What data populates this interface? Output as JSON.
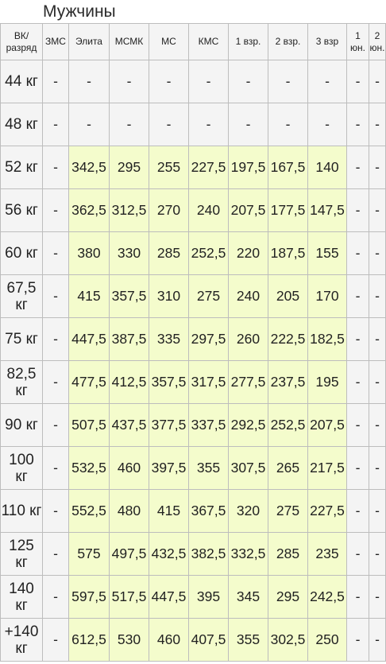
{
  "page": {
    "title": "Мужчины"
  },
  "colors": {
    "header_bg": "#f4f4f4",
    "highlight_bg": "#f4fccc",
    "border": "#bdbdbd"
  },
  "table": {
    "headers": [
      "ВК/ разряд",
      "ЗМС",
      "Элита",
      "МСМК",
      "МС",
      "КМС",
      "1 взр.",
      "2 взр.",
      "3 взр",
      "1 юн.",
      "2 юн."
    ],
    "rows": [
      {
        "weight": "44 кг",
        "values": [
          "-",
          "-",
          "-",
          "-",
          "-",
          "-",
          "-",
          "-",
          "-",
          "-"
        ],
        "highlight": false
      },
      {
        "weight": "48 кг",
        "values": [
          "-",
          "-",
          "-",
          "-",
          "-",
          "-",
          "-",
          "-",
          "-",
          "-"
        ],
        "highlight": false
      },
      {
        "weight": "52 кг",
        "values": [
          "-",
          "342,5",
          "295",
          "255",
          "227,5",
          "197,5",
          "167,5",
          "140",
          "-",
          "-"
        ],
        "highlight": true
      },
      {
        "weight": "56 кг",
        "values": [
          "-",
          "362,5",
          "312,5",
          "270",
          "240",
          "207,5",
          "177,5",
          "147,5",
          "-",
          "-"
        ],
        "highlight": true
      },
      {
        "weight": "60 кг",
        "values": [
          "-",
          "380",
          "330",
          "285",
          "252,5",
          "220",
          "187,5",
          "155",
          "-",
          "-"
        ],
        "highlight": true
      },
      {
        "weight": "67,5 кг",
        "values": [
          "-",
          "415",
          "357,5",
          "310",
          "275",
          "240",
          "205",
          "170",
          "-",
          "-"
        ],
        "highlight": true
      },
      {
        "weight": "75 кг",
        "values": [
          "-",
          "447,5",
          "387,5",
          "335",
          "297,5",
          "260",
          "222,5",
          "182,5",
          "-",
          "-"
        ],
        "highlight": true
      },
      {
        "weight": "82,5 кг",
        "values": [
          "-",
          "477,5",
          "412,5",
          "357,5",
          "317,5",
          "277,5",
          "237,5",
          "195",
          "-",
          "-"
        ],
        "highlight": true
      },
      {
        "weight": "90 кг",
        "values": [
          "-",
          "507,5",
          "437,5",
          "377,5",
          "337,5",
          "292,5",
          "252,5",
          "207,5",
          "-",
          "-"
        ],
        "highlight": true
      },
      {
        "weight": "100 кг",
        "values": [
          "-",
          "532,5",
          "460",
          "397,5",
          "355",
          "307,5",
          "265",
          "217,5",
          "-",
          "-"
        ],
        "highlight": true
      },
      {
        "weight": "110 кг",
        "values": [
          "-",
          "552,5",
          "480",
          "415",
          "367,5",
          "320",
          "275",
          "227,5",
          "-",
          "-"
        ],
        "highlight": true
      },
      {
        "weight": "125 кг",
        "values": [
          "-",
          "575",
          "497,5",
          "432,5",
          "382,5",
          "332,5",
          "285",
          "235",
          "-",
          "-"
        ],
        "highlight": true
      },
      {
        "weight": "140 кг",
        "values": [
          "-",
          "597,5",
          "517,5",
          "447,5",
          "395",
          "345",
          "295",
          "242,5",
          "-",
          "-"
        ],
        "highlight": true
      },
      {
        "weight": "+140 кг",
        "values": [
          "-",
          "612,5",
          "530",
          "460",
          "407,5",
          "355",
          "302,5",
          "250",
          "-",
          "-"
        ],
        "highlight": true
      }
    ]
  }
}
